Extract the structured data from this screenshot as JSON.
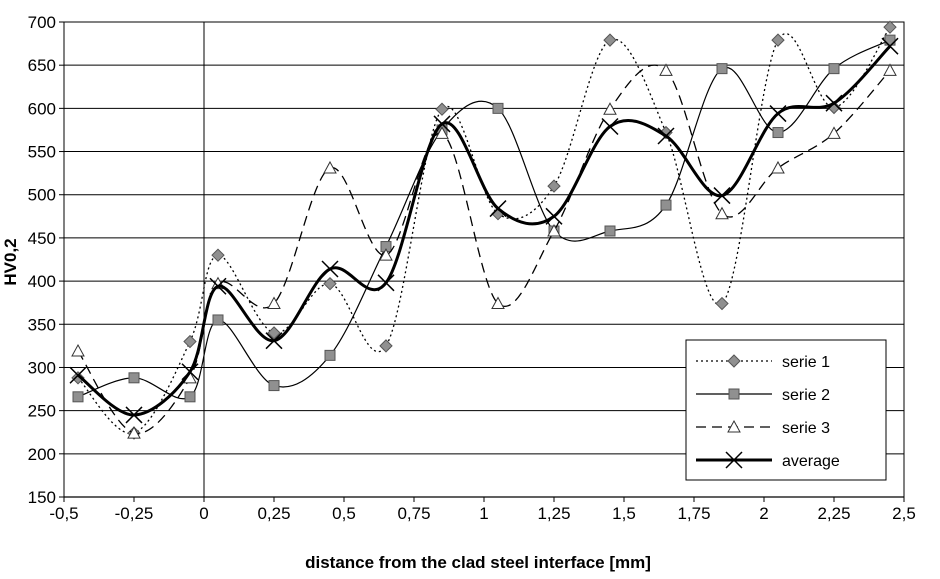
{
  "chart_data": {
    "type": "line",
    "title": "",
    "xlabel": "distance from the clad steel interface [mm]",
    "ylabel": "HV0,2",
    "xlim": [
      -0.5,
      2.5
    ],
    "ylim": [
      150,
      700
    ],
    "x_ticks": [
      -0.5,
      -0.25,
      0,
      0.25,
      0.5,
      0.75,
      1,
      1.25,
      1.5,
      1.75,
      2,
      2.25,
      2.5
    ],
    "x_tick_labels": [
      "-0,5",
      "-0,25",
      "0",
      "0,25",
      "0,5",
      "0,75",
      "1",
      "1,25",
      "1,5",
      "1,75",
      "2",
      "2,25",
      "2,5"
    ],
    "y_ticks": [
      150,
      200,
      250,
      300,
      350,
      400,
      450,
      500,
      550,
      600,
      650,
      700
    ],
    "y_tick_labels": [
      "150",
      "200",
      "250",
      "300",
      "350",
      "400",
      "450",
      "500",
      "550",
      "600",
      "650",
      "700"
    ],
    "grid": "horizontal",
    "legend_position": "bottom-right",
    "series": [
      {
        "name": "serie 1",
        "line": "dotted",
        "marker": "diamond",
        "color": "#000000",
        "marker_color": "#909090",
        "x": [
          -0.45,
          -0.25,
          -0.05,
          0.05,
          0.25,
          0.45,
          0.65,
          0.85,
          1.05,
          1.25,
          1.45,
          1.65,
          1.85,
          2.05,
          2.25,
          2.45
        ],
        "y": [
          288,
          224,
          330,
          430,
          340,
          397,
          325,
          599,
          478,
          510,
          679,
          572,
          374,
          679,
          601,
          694
        ]
      },
      {
        "name": "serie 2",
        "line": "solid-thin",
        "marker": "square",
        "color": "#000000",
        "marker_color": "#909090",
        "x": [
          -0.45,
          -0.25,
          -0.05,
          0.05,
          0.25,
          0.45,
          0.65,
          0.85,
          1.05,
          1.25,
          1.45,
          1.65,
          1.85,
          2.05,
          2.25,
          2.45
        ],
        "y": [
          266,
          288,
          266,
          355,
          279,
          314,
          440,
          575,
          600,
          458,
          458,
          488,
          646,
          572,
          646,
          679
        ]
      },
      {
        "name": "serie 3",
        "line": "dashed",
        "marker": "triangle",
        "color": "#000000",
        "marker_color": "#ffffff",
        "x": [
          -0.45,
          -0.25,
          -0.05,
          0.05,
          0.25,
          0.45,
          0.65,
          0.85,
          1.05,
          1.25,
          1.45,
          1.65,
          1.85,
          2.05,
          2.25,
          2.45
        ],
        "y": [
          319,
          224,
          288,
          397,
          374,
          531,
          430,
          571,
          374,
          458,
          599,
          644,
          478,
          531,
          571,
          644
        ]
      },
      {
        "name": "average",
        "line": "solid-thick",
        "marker": "x",
        "color": "#000000",
        "marker_color": "#000000",
        "x": [
          -0.45,
          -0.25,
          -0.05,
          0.05,
          0.25,
          0.45,
          0.65,
          0.85,
          1.05,
          1.25,
          1.45,
          1.65,
          1.85,
          2.05,
          2.25,
          2.45
        ],
        "y": [
          291,
          245,
          295,
          394,
          331,
          414,
          398,
          582,
          484,
          475,
          579,
          568,
          499,
          594,
          606,
          672
        ]
      }
    ]
  }
}
